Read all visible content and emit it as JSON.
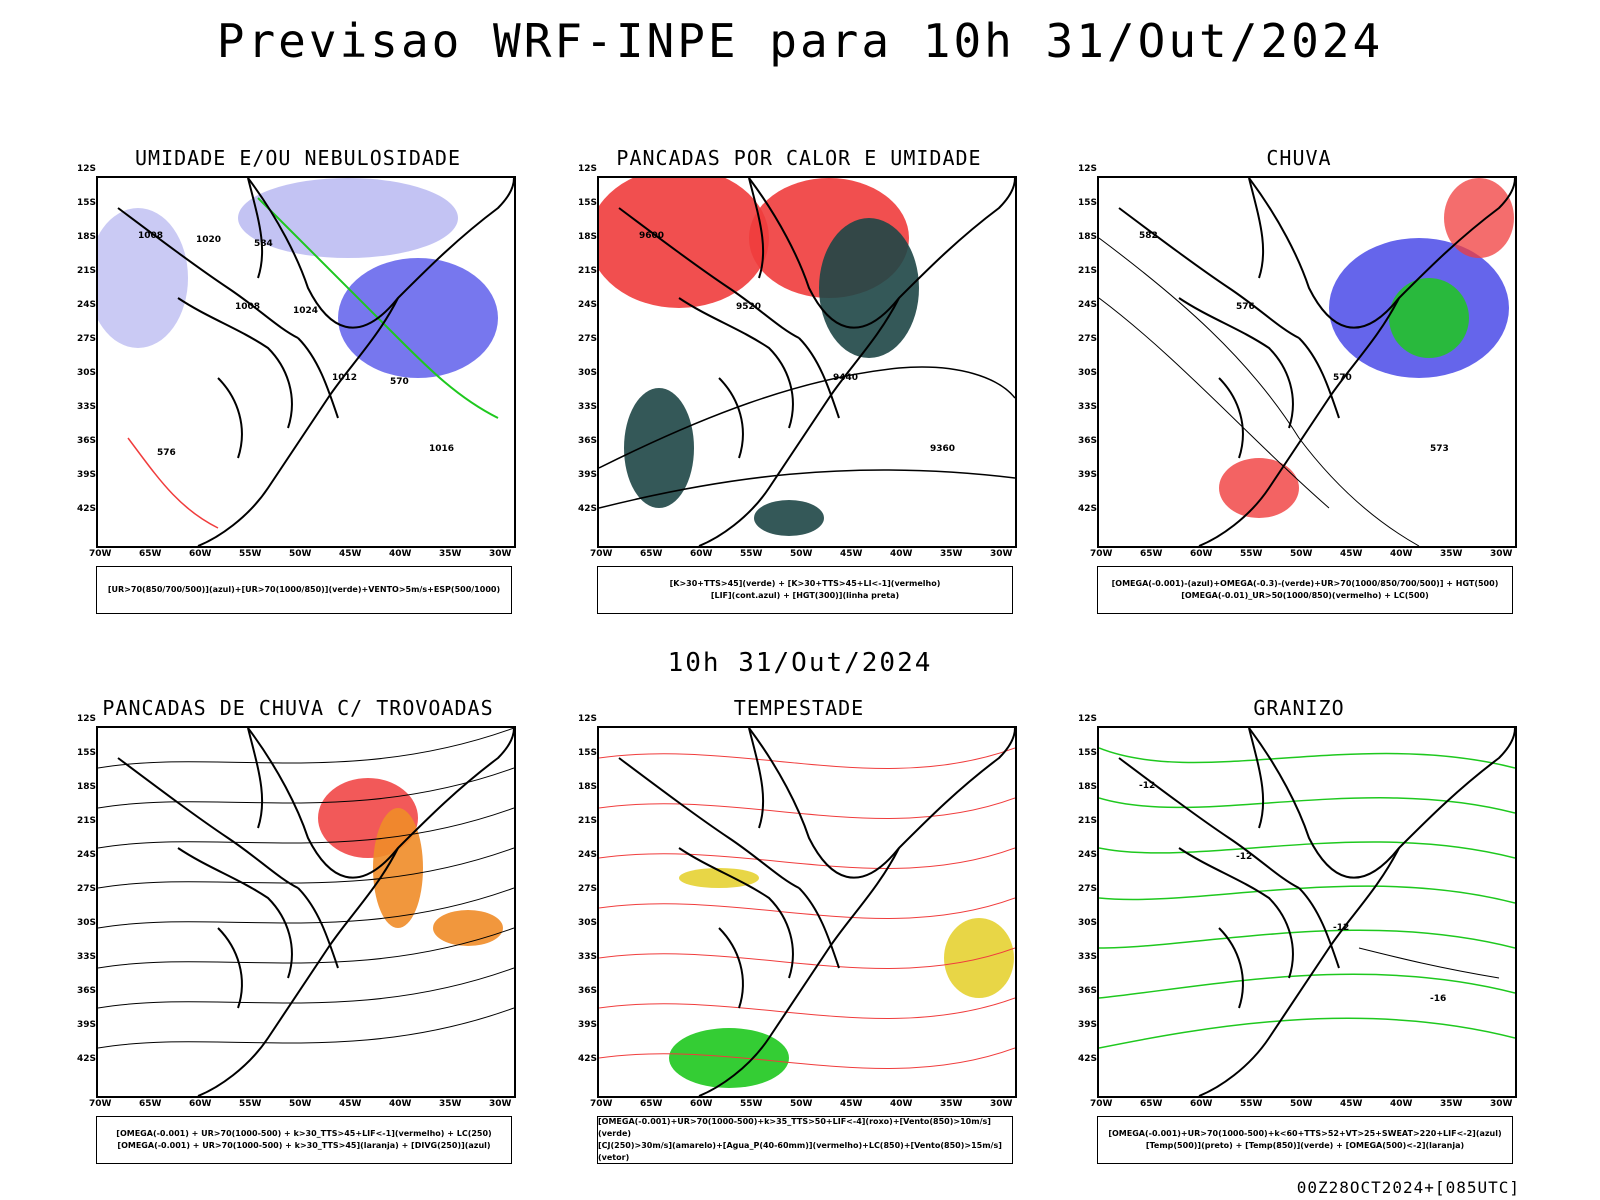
{
  "title": "Previsao WRF-INPE  para 10h 31/Out/2024",
  "subtitle": "10h 31/Out/2024",
  "footer": "00Z28OCT2024+[085UTC]",
  "lat_labels": [
    "12S",
    "15S",
    "18S",
    "21S",
    "24S",
    "27S",
    "30S",
    "33S",
    "36S",
    "39S",
    "42S"
  ],
  "lon_labels": [
    "70W",
    "65W",
    "60W",
    "55W",
    "50W",
    "45W",
    "40W",
    "35W",
    "30W"
  ],
  "panels": [
    {
      "title": "UMIDADE E/OU NEBULOSIDADE",
      "legend": [
        "[UR>70(850/700/500)](azul)+[UR>70(1000/850)](verde)+VENTO>5m/s+ESP(500/1000)"
      ],
      "contour_labels": [
        "1008",
        "1008",
        "1012",
        "1016",
        "1020",
        "1024",
        "570",
        "576",
        "584"
      ]
    },
    {
      "title": "PANCADAS POR CALOR E UMIDADE",
      "legend": [
        "[K>30+TTS>45](verde)  +  [K>30+TTS>45+LI<-1](vermelho)",
        "[LIF](cont.azul)  +  [HGT(300)](linha preta)"
      ],
      "contour_labels": [
        "9600",
        "9520",
        "9440",
        "9360"
      ]
    },
    {
      "title": "CHUVA",
      "legend": [
        "[OMEGA(-0.001)-(azul)+OMEGA(-0.3)-(verde)+UR>70(1000/850/700/500)]  +  HGT(500)",
        "[OMEGA(-0.01)_UR>50(1000/850)(vermelho)  +  LC(500)"
      ],
      "contour_labels": [
        "582",
        "576",
        "570",
        "573"
      ]
    },
    {
      "title": "PANCADAS DE CHUVA C/ TROVOADAS",
      "legend": [
        "[OMEGA(-0.001)  +  UR>70(1000-500)  +  k>30_TTS>45+LIF<-1](vermelho)  +  LC(250)",
        "[OMEGA(-0.001)  +  UR>70(1000-500)  +  k>30_TTS>45](laranja)  +  [DIVG(250)](azul)"
      ],
      "contour_labels": []
    },
    {
      "title": "TEMPESTADE",
      "legend": [
        "[OMEGA(-0.001)+UR>70(1000-500)+k>35_TTS>50+LIF<-4](roxo)+[Vento(850)>10m/s](verde)",
        "[CJ(250)>30m/s](amarelo)+[Agua_P(40-60mm)](vermelho)+LC(850)+[Vento(850)>15m/s](vetor)"
      ],
      "contour_labels": []
    },
    {
      "title": "GRANIZO",
      "legend": [
        "[OMEGA(-0.001)+UR>70(1000-500)+k<60+TTS>52+VT>25+SWEAT>220+LIF<-2](azul)",
        "[Temp(500)](preto)  +  [Temp(850)](verde)  +  [OMEGA(500)<-2](laranja)"
      ],
      "contour_labels": [
        "-12",
        "-12",
        "-12",
        "-16"
      ]
    }
  ],
  "colors": {
    "blue": "#4a4ae8",
    "lightblue": "#b4b4f0",
    "green": "#1ec81e",
    "red": "#f03c3c",
    "darkteal": "#1e4646",
    "orange": "#f08c28",
    "yellow": "#e6d232",
    "purple": "#a000c8"
  }
}
